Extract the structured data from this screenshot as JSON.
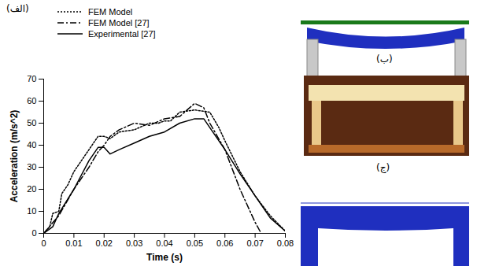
{
  "chart_data": {
    "type": "line",
    "x_label": "Time (s)",
    "y_label": "Acceleration (m/s^2)",
    "xlim": [
      0,
      0.08
    ],
    "xticks": [
      0,
      0.01,
      0.02,
      0.03,
      0.04,
      0.05,
      0.06,
      0.07,
      0.08
    ],
    "ylim": [
      0,
      70
    ],
    "yticks": [
      0,
      10,
      20,
      30,
      40,
      50,
      60,
      70
    ],
    "grid": false,
    "legend": "top-left",
    "series": [
      {
        "name": "FEM Model",
        "color": "#000000",
        "line_style": "dotted",
        "x": [
          0,
          0.002,
          0.003,
          0.005,
          0.006,
          0.008,
          0.01,
          0.012,
          0.015,
          0.018,
          0.02,
          0.022,
          0.025,
          0.03,
          0.035,
          0.038,
          0.04,
          0.042,
          0.045,
          0.05,
          0.055,
          0.058,
          0.06,
          0.065,
          0.07,
          0.075,
          0.08
        ],
        "values": [
          0,
          3,
          9,
          10,
          18,
          22,
          28,
          32,
          38,
          44,
          44,
          43,
          46,
          47,
          50,
          50,
          51,
          51,
          55,
          56,
          55,
          48,
          42,
          28,
          17,
          8,
          1
        ]
      },
      {
        "name": "FEM Model [27]",
        "color": "#000000",
        "line_style": "dashdot",
        "x": [
          0,
          0.005,
          0.01,
          0.015,
          0.018,
          0.02,
          0.022,
          0.025,
          0.03,
          0.035,
          0.04,
          0.045,
          0.05,
          0.053,
          0.055,
          0.06,
          0.065,
          0.07,
          0.072
        ],
        "values": [
          0,
          8,
          20,
          30,
          37,
          40,
          44,
          47,
          50,
          49,
          52,
          53,
          59,
          57,
          50,
          38,
          20,
          5,
          0
        ]
      },
      {
        "name": "Experimental [27]",
        "color": "#000000",
        "line_style": "solid",
        "x": [
          0,
          0.003,
          0.005,
          0.01,
          0.015,
          0.018,
          0.02,
          0.022,
          0.025,
          0.03,
          0.035,
          0.04,
          0.045,
          0.05,
          0.053,
          0.055,
          0.06,
          0.065,
          0.07,
          0.075,
          0.08
        ],
        "values": [
          0,
          3,
          9,
          20,
          33,
          39,
          39,
          36,
          38,
          41,
          44,
          46,
          50,
          52,
          52,
          48,
          38,
          27,
          17,
          7,
          1
        ]
      }
    ]
  },
  "figure": {
    "panel_labels": [
      "(الف)",
      "(ب)",
      "(ج)"
    ]
  }
}
